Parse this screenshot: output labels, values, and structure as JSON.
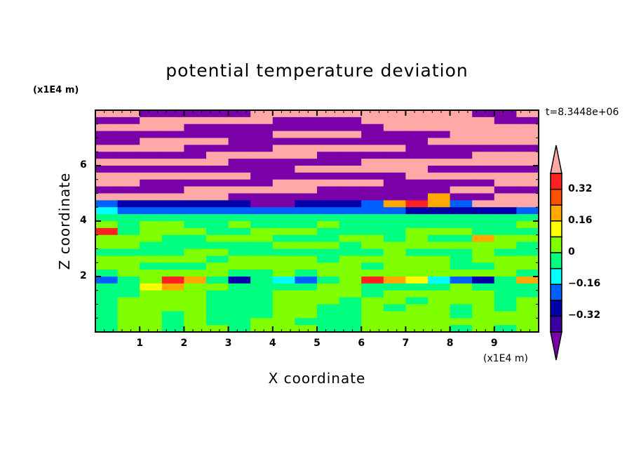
{
  "chart_data": {
    "type": "heatmap",
    "title": "potential temperature deviation",
    "xlabel": "X coordinate",
    "ylabel": "Z coordinate",
    "x_unit": "(x1E4 m)",
    "y_unit": "(x1E4 m)",
    "time_label": "t=8.3448e+06",
    "xlim": [
      0,
      10
    ],
    "ylim": [
      0,
      8
    ],
    "x_ticks": [
      "1",
      "2",
      "3",
      "4",
      "5",
      "6",
      "7",
      "8",
      "9"
    ],
    "y_ticks": [
      "2",
      "4",
      "6"
    ],
    "grid": false,
    "grid_x_step": 0.5,
    "grid_z_step": 0.25,
    "z_rows_top_to_bottom": [
      [
        0.5,
        0.5,
        -0.5,
        -0.5,
        -0.5,
        -0.5,
        -0.5,
        0.5,
        0.5,
        0.5,
        0.5,
        0.5,
        0.5,
        0.5,
        0.5,
        0.5,
        0.5,
        -0.5,
        -0.5,
        0.5
      ],
      [
        -0.5,
        -0.5,
        0.5,
        0.5,
        0.5,
        0.5,
        0.5,
        0.5,
        -0.5,
        -0.5,
        -0.5,
        -0.5,
        0.5,
        0.5,
        0.5,
        0.5,
        0.5,
        0.5,
        -0.5,
        -0.5
      ],
      [
        0.5,
        0.5,
        0.5,
        0.5,
        -0.5,
        -0.5,
        -0.5,
        -0.5,
        -0.5,
        -0.5,
        -0.5,
        -0.5,
        -0.5,
        0.5,
        0.5,
        0.5,
        0.5,
        0.5,
        0.5,
        0.5
      ],
      [
        -0.5,
        -0.5,
        -0.5,
        -0.5,
        -0.5,
        -0.5,
        -0.5,
        -0.5,
        0.5,
        0.5,
        0.5,
        0.5,
        -0.5,
        -0.5,
        -0.5,
        -0.5,
        0.5,
        0.5,
        0.5,
        0.5
      ],
      [
        -0.5,
        -0.5,
        0.5,
        0.5,
        0.5,
        0.5,
        -0.5,
        -0.5,
        -0.5,
        -0.5,
        -0.5,
        -0.5,
        -0.5,
        -0.5,
        -0.5,
        0.5,
        0.5,
        0.5,
        0.5,
        0.5
      ],
      [
        0.5,
        0.5,
        0.5,
        0.5,
        -0.5,
        -0.5,
        -0.5,
        -0.5,
        0.5,
        0.5,
        0.5,
        0.5,
        0.5,
        0.5,
        -0.5,
        -0.5,
        -0.5,
        -0.5,
        -0.5,
        -0.5
      ],
      [
        -0.5,
        -0.5,
        -0.5,
        -0.5,
        -0.5,
        0.5,
        0.5,
        0.5,
        0.5,
        0.5,
        -0.5,
        -0.5,
        -0.5,
        -0.5,
        -0.5,
        -0.5,
        -0.5,
        0.5,
        0.5,
        0.5
      ],
      [
        0.5,
        0.5,
        0.5,
        0.5,
        0.5,
        0.5,
        -0.5,
        -0.5,
        -0.5,
        -0.5,
        -0.5,
        -0.5,
        0.5,
        0.5,
        0.5,
        0.5,
        0.5,
        0.5,
        0.5,
        0.5
      ],
      [
        -0.5,
        -0.5,
        -0.5,
        -0.5,
        -0.5,
        -0.5,
        -0.5,
        -0.5,
        -0.5,
        0.5,
        0.5,
        0.5,
        0.5,
        0.5,
        0.5,
        -0.5,
        -0.5,
        -0.5,
        -0.5,
        -0.5
      ],
      [
        0.5,
        0.5,
        0.5,
        0.5,
        0.5,
        0.5,
        0.5,
        -0.5,
        -0.5,
        -0.5,
        -0.5,
        -0.5,
        -0.5,
        -0.5,
        0.5,
        0.5,
        0.5,
        0.5,
        0.5,
        0.5
      ],
      [
        0.5,
        0.5,
        -0.5,
        -0.5,
        -0.5,
        -0.5,
        -0.5,
        -0.5,
        0.5,
        0.5,
        0.5,
        0.5,
        0.5,
        -0.5,
        -0.5,
        -0.5,
        -0.5,
        -0.5,
        0.5,
        0.5
      ],
      [
        -0.5,
        -0.5,
        -0.5,
        -0.5,
        0.5,
        0.5,
        0.5,
        0.5,
        0.5,
        0.5,
        -0.5,
        -0.5,
        -0.5,
        -0.5,
        -0.5,
        -0.5,
        0.5,
        0.5,
        -0.5,
        -0.5
      ],
      [
        0.5,
        0.5,
        0.5,
        0.5,
        0.5,
        0.5,
        -0.5,
        -0.5,
        -0.5,
        -0.5,
        -0.5,
        -0.5,
        -0.5,
        -0.5,
        -0.5,
        0.2,
        -0.5,
        -0.5,
        0.5,
        0.5
      ],
      [
        -0.2,
        -0.28,
        -0.28,
        -0.28,
        -0.28,
        -0.28,
        -0.28,
        -0.5,
        -0.5,
        -0.28,
        -0.28,
        -0.28,
        -0.2,
        0.2,
        0.36,
        0.2,
        -0.2,
        0.5,
        0.5,
        0.5
      ],
      [
        -0.12,
        -0.2,
        -0.2,
        -0.2,
        -0.2,
        -0.2,
        -0.2,
        -0.2,
        -0.2,
        -0.2,
        -0.2,
        -0.2,
        -0.2,
        -0.2,
        -0.28,
        -0.28,
        -0.28,
        -0.28,
        -0.28,
        -0.2
      ],
      [
        -0.04,
        -0.04,
        -0.04,
        -0.04,
        -0.04,
        -0.04,
        -0.04,
        -0.04,
        -0.04,
        -0.04,
        -0.04,
        -0.04,
        -0.04,
        -0.04,
        -0.04,
        -0.04,
        -0.04,
        -0.04,
        -0.04,
        -0.04
      ],
      [
        0.04,
        -0.04,
        0.04,
        0.04,
        -0.04,
        -0.04,
        0.04,
        -0.04,
        -0.04,
        -0.04,
        0.04,
        -0.04,
        -0.04,
        -0.04,
        -0.04,
        -0.04,
        -0.04,
        -0.04,
        -0.04,
        0.04
      ],
      [
        0.36,
        -0.04,
        0.04,
        0.04,
        0.04,
        -0.04,
        -0.04,
        0.04,
        0.04,
        0.04,
        -0.04,
        -0.04,
        -0.04,
        -0.04,
        0.04,
        0.04,
        0.04,
        -0.04,
        -0.04,
        -0.04
      ],
      [
        0.04,
        0.04,
        0.04,
        -0.04,
        -0.04,
        0.04,
        0.04,
        0.04,
        -0.04,
        -0.04,
        -0.04,
        0.04,
        0.04,
        -0.04,
        0.04,
        -0.04,
        -0.04,
        0.2,
        0.04,
        0.04
      ],
      [
        0.04,
        0.04,
        -0.04,
        -0.04,
        -0.04,
        -0.04,
        -0.04,
        -0.04,
        0.04,
        0.04,
        0.04,
        -0.04,
        0.04,
        0.04,
        0.04,
        0.04,
        0.04,
        0.04,
        0.04,
        -0.04
      ],
      [
        -0.04,
        -0.04,
        -0.04,
        -0.04,
        0.04,
        0.04,
        -0.04,
        -0.04,
        -0.04,
        -0.04,
        -0.04,
        -0.04,
        -0.04,
        0.04,
        -0.04,
        -0.04,
        -0.04,
        0.04,
        -0.04,
        -0.04
      ],
      [
        0.04,
        0.04,
        0.04,
        0.04,
        0.04,
        -0.04,
        0.04,
        0.04,
        0.04,
        0.04,
        -0.04,
        0.04,
        0.04,
        0.04,
        0.04,
        0.04,
        -0.04,
        0.04,
        0.04,
        0.04
      ],
      [
        0.04,
        0.04,
        -0.04,
        -0.04,
        -0.04,
        0.04,
        0.04,
        0.04,
        0.04,
        0.04,
        0.04,
        0.04,
        -0.04,
        0.04,
        0.04,
        0.04,
        -0.04,
        -0.04,
        0.04,
        0.04
      ],
      [
        -0.04,
        0.04,
        0.04,
        0.04,
        0.04,
        0.04,
        -0.04,
        -0.04,
        0.04,
        -0.04,
        0.04,
        0.04,
        0.04,
        0.04,
        0.04,
        0.04,
        0.04,
        0.04,
        0.04,
        -0.04
      ],
      [
        -0.2,
        -0.04,
        0.04,
        0.36,
        0.2,
        -0.04,
        -0.28,
        -0.04,
        -0.12,
        -0.2,
        -0.04,
        0.04,
        0.36,
        0.2,
        0.12,
        -0.12,
        -0.2,
        -0.28,
        -0.04,
        0.2
      ],
      [
        -0.04,
        -0.04,
        0.12,
        0.2,
        0.04,
        0.04,
        -0.04,
        -0.04,
        -0.04,
        -0.04,
        0.04,
        0.04,
        -0.04,
        -0.04,
        -0.04,
        -0.04,
        0.04,
        -0.04,
        -0.04,
        -0.04
      ],
      [
        -0.04,
        -0.04,
        0.04,
        0.04,
        0.04,
        -0.04,
        -0.04,
        -0.04,
        0.04,
        0.04,
        0.04,
        0.04,
        -0.04,
        0.04,
        0.04,
        0.04,
        0.04,
        0.04,
        -0.04,
        -0.04
      ],
      [
        -0.04,
        0.04,
        0.04,
        0.04,
        0.04,
        -0.04,
        -0.04,
        -0.04,
        0.04,
        0.04,
        0.04,
        -0.04,
        0.04,
        0.04,
        -0.04,
        0.04,
        0.04,
        0.04,
        -0.04,
        0.04
      ],
      [
        -0.04,
        0.04,
        0.04,
        0.04,
        0.04,
        -0.04,
        -0.04,
        -0.04,
        0.04,
        0.04,
        -0.04,
        -0.04,
        0.04,
        -0.04,
        0.04,
        0.04,
        -0.04,
        0.04,
        -0.04,
        0.04
      ],
      [
        -0.04,
        0.04,
        0.04,
        -0.04,
        0.04,
        -0.04,
        -0.04,
        -0.04,
        0.04,
        0.04,
        -0.04,
        -0.04,
        0.04,
        0.04,
        0.04,
        0.04,
        -0.04,
        0.04,
        0.04,
        0.04
      ],
      [
        -0.04,
        0.04,
        0.04,
        -0.04,
        0.04,
        -0.04,
        -0.04,
        0.04,
        0.04,
        -0.04,
        -0.04,
        -0.04,
        0.04,
        0.04,
        0.04,
        0.04,
        0.04,
        0.04,
        0.04,
        0.04
      ],
      [
        -0.04,
        0.04,
        0.04,
        -0.04,
        0.04,
        0.04,
        -0.04,
        0.04,
        0.04,
        0.04,
        -0.04,
        -0.04,
        0.04,
        0.04,
        0.04,
        0.04,
        -0.04,
        0.04,
        -0.04,
        0.04
      ]
    ],
    "colorbar": {
      "levels": [
        -0.4,
        -0.32,
        -0.24,
        -0.16,
        -0.08,
        0,
        0.08,
        0.16,
        0.24,
        0.32,
        0.4
      ],
      "tick_labels": [
        "0.32",
        "0.16",
        "0",
        "−0.16",
        "−0.32"
      ],
      "tick_values": [
        0.32,
        0.16,
        0,
        -0.16,
        -0.32
      ],
      "colors_low_to_high": [
        "#7a00a8",
        "#3c00a0",
        "#0000a8",
        "#0060ff",
        "#00ffff",
        "#00ff80",
        "#80ff00",
        "#ffff00",
        "#ffa800",
        "#ff5000",
        "#ff2020",
        "#ffa8a8"
      ],
      "extend": "both"
    }
  }
}
